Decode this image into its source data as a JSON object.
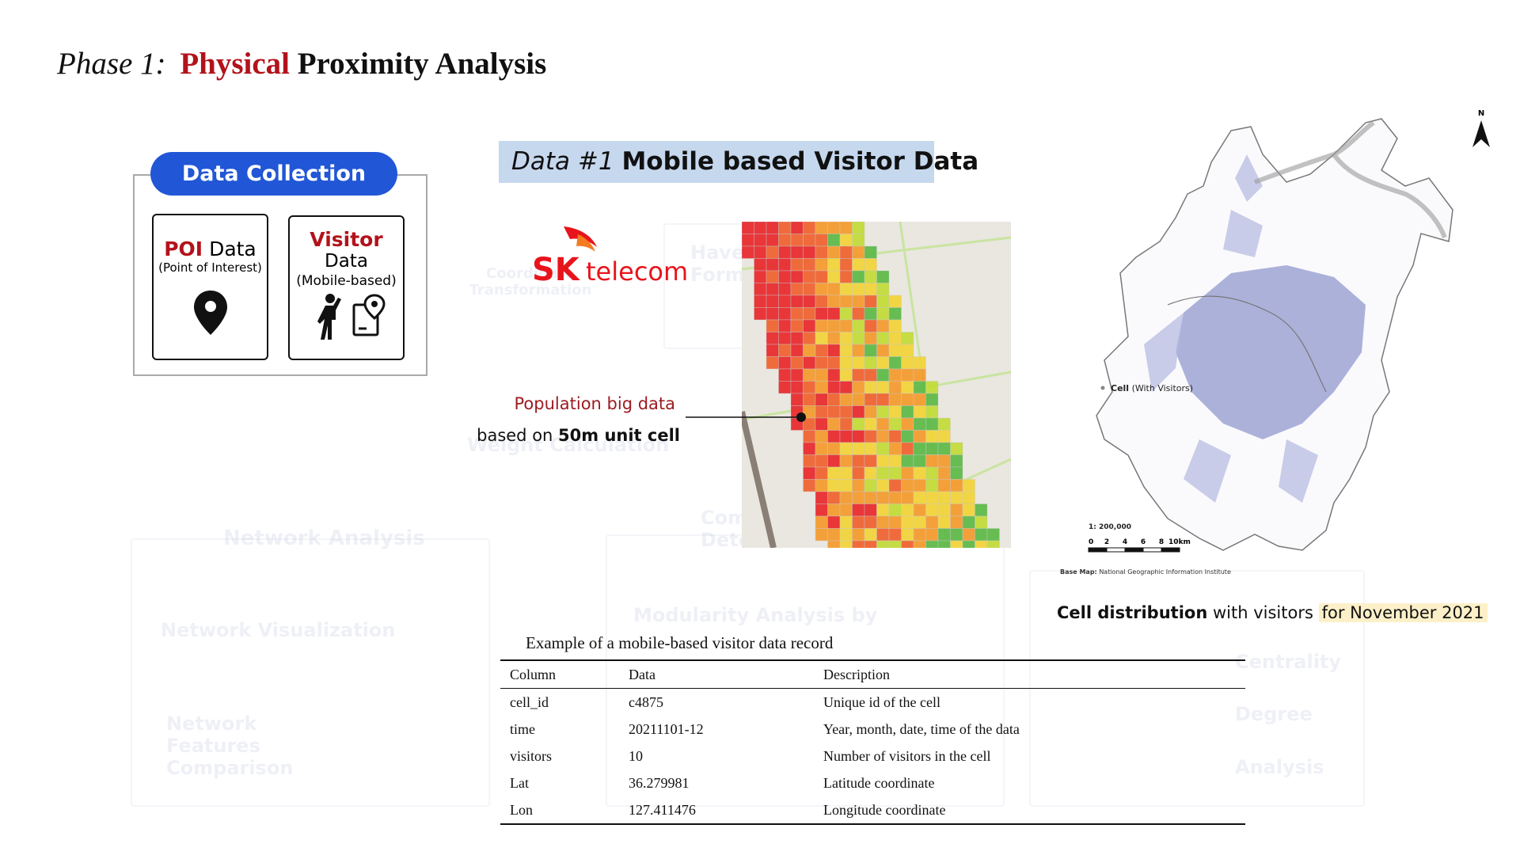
{
  "title": {
    "prefix": "Phase 1:",
    "highlight": "Physical",
    "rest": "Proximity Analysis"
  },
  "data_collection": {
    "title": "Data Collection",
    "poi": {
      "bold": "POI",
      "label": "Data",
      "sub": "(Point of Interest)"
    },
    "visitor": {
      "bold": "Visitor",
      "label": "Data",
      "sub": "(Mobile-based)"
    }
  },
  "data_header": {
    "prefix": "Data #1",
    "bold": "Mobile based Visitor Data"
  },
  "logo": {
    "sk": "SK",
    "telecom": "telecom"
  },
  "heatmap_note": {
    "line1": "Population big data",
    "line2_prefix": "based on",
    "line2_bold": "50m unit cell"
  },
  "map": {
    "north": "N",
    "legend_bold": "Cell",
    "legend_rest": "(With Visitors)",
    "scale_ratio": "1: 200,000",
    "scale_ticks": [
      "0",
      "2",
      "4",
      "6",
      "8",
      "10km"
    ],
    "base_bold": "Base Map:",
    "base_rest": "National Geographic Information Institute"
  },
  "caption": {
    "bold": "Cell distribution",
    "mid": "with visitors",
    "highlight": "for November 2021"
  },
  "table": {
    "caption": "Example of a mobile-based visitor data record",
    "columns": [
      "Column",
      "Data",
      "Description"
    ],
    "rows": [
      [
        "cell_id",
        "c4875",
        "Unique id of the cell"
      ],
      [
        "time",
        "20211101-12",
        "Year, month, date, time of the data"
      ],
      [
        "visitors",
        "10",
        "Number of visitors in the cell"
      ],
      [
        "Lat",
        "36.279981",
        "Latitude coordinate"
      ],
      [
        "Lon",
        "127.411476",
        "Longitude coordinate"
      ]
    ]
  },
  "background": {
    "coord": "Coordinate Transformation",
    "haversine": "Haversine Formula",
    "weight": "Weight Calculation",
    "network": "Network Analysis",
    "net_vis": "Network Visualization",
    "net_feat": "Network Features Comparison",
    "modularity": "Modularity Analysis by",
    "community": "Community Detection",
    "centrality": "Centrality",
    "degree": "Degree",
    "analysis": "Analysis"
  }
}
